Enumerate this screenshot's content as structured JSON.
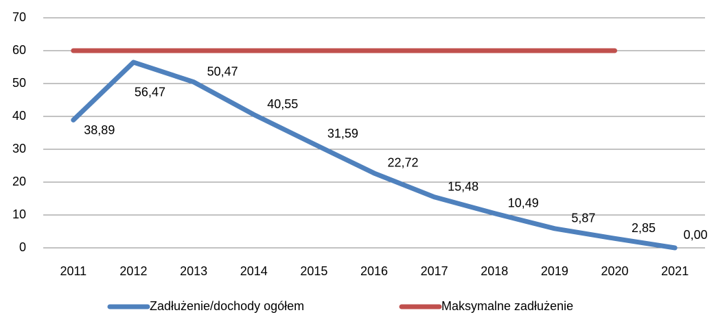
{
  "chart_data": {
    "type": "line",
    "categories": [
      "2011",
      "2012",
      "2013",
      "2014",
      "2015",
      "2016",
      "2017",
      "2018",
      "2019",
      "2020",
      "2021"
    ],
    "series": [
      {
        "name": "Zadłużenie/dochody ogółem",
        "color": "#4f81bd",
        "values": [
          38.89,
          56.47,
          50.47,
          40.55,
          31.59,
          22.72,
          15.48,
          10.49,
          5.87,
          2.85,
          0
        ],
        "value_labels": [
          "38,89",
          "56,47",
          "50,47",
          "40,55",
          "31,59",
          "22,72",
          "15,48",
          "10,49",
          "5,87",
          "2,85",
          "0,00"
        ]
      },
      {
        "name": "Maksymalne zadłużenie",
        "color": "#c0504d",
        "values": [
          60,
          60,
          60,
          60,
          60,
          60,
          60,
          60,
          60,
          60,
          null
        ]
      }
    ],
    "ylim": [
      0,
      70
    ],
    "yticks": [
      0,
      10,
      20,
      30,
      40,
      50,
      60,
      70
    ],
    "grid": true,
    "legend": "bottom"
  }
}
